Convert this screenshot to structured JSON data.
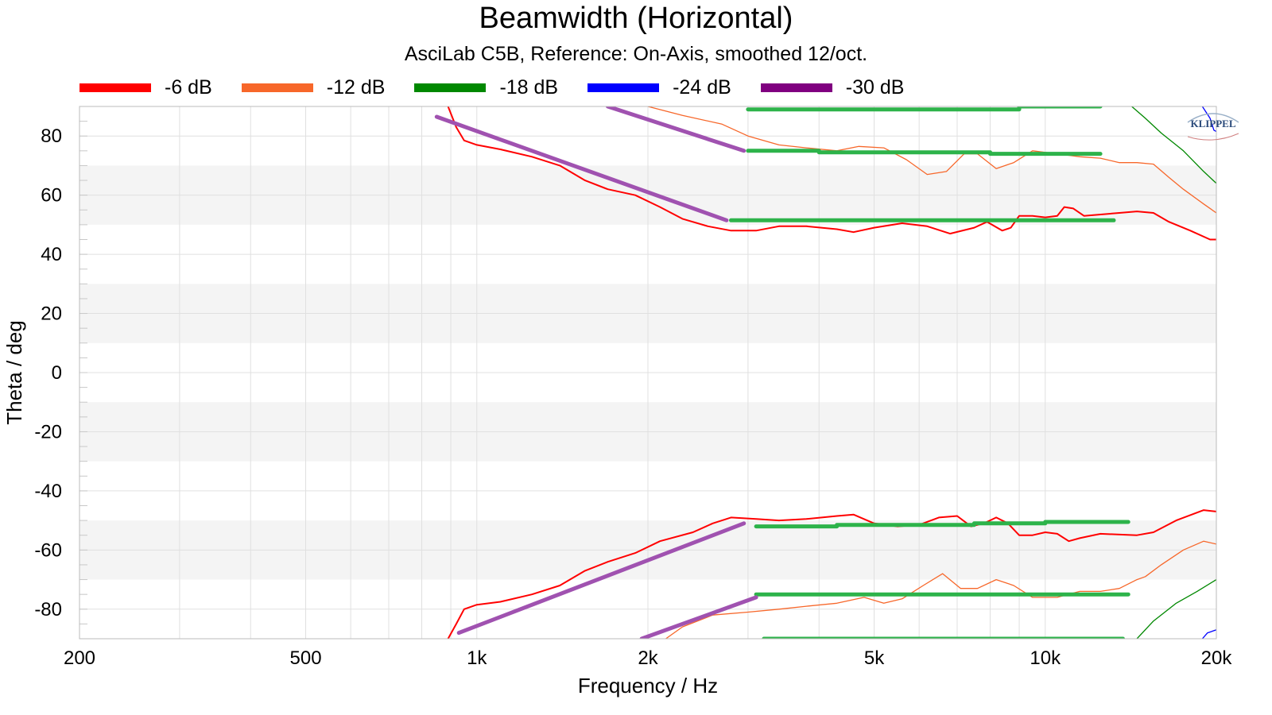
{
  "chart_data": {
    "type": "line",
    "title": "Beamwidth (Horizontal)",
    "subtitle": "AsciLab C5B, Reference: On-Axis, smoothed 12/oct.",
    "xlabel": "Frequency / Hz",
    "ylabel": "Theta / deg",
    "xscale": "log",
    "xlim": [
      200,
      20000
    ],
    "ylim": [
      -90,
      90
    ],
    "xticks": [
      200,
      500,
      1000,
      2000,
      5000,
      10000,
      20000
    ],
    "xtick_labels": [
      "200",
      "500",
      "1k",
      "2k",
      "5k",
      "10k",
      "20k"
    ],
    "yticks": [
      80,
      60,
      40,
      20,
      0,
      -20,
      -40,
      -60,
      -80
    ],
    "ytick_labels": [
      "80",
      "60",
      "40",
      "20",
      "0",
      "-20",
      "-40",
      "-60",
      "-80"
    ],
    "grid": true,
    "legend_position": "top-left",
    "logo_text": "KLIPPEL",
    "series": [
      {
        "name": "-6 dB",
        "color": "#ff0000",
        "branches": [
          [
            [
              890,
              90
            ],
            [
              920,
              83
            ],
            [
              950,
              78.5
            ],
            [
              1000,
              77
            ],
            [
              1100,
              75.5
            ],
            [
              1250,
              73
            ],
            [
              1400,
              70
            ],
            [
              1550,
              65
            ],
            [
              1700,
              62
            ],
            [
              1900,
              60
            ],
            [
              2100,
              56
            ],
            [
              2300,
              52
            ],
            [
              2550,
              49.5
            ],
            [
              2800,
              48
            ],
            [
              3100,
              48
            ],
            [
              3400,
              49.5
            ],
            [
              3800,
              49.5
            ],
            [
              4300,
              48.5
            ],
            [
              4600,
              47.5
            ],
            [
              5000,
              49
            ],
            [
              5600,
              50.5
            ],
            [
              6200,
              49.5
            ],
            [
              6800,
              47
            ],
            [
              7500,
              49
            ],
            [
              7900,
              51
            ],
            [
              8400,
              48
            ],
            [
              8700,
              49
            ],
            [
              9000,
              53
            ],
            [
              9500,
              53
            ],
            [
              10000,
              52.5
            ],
            [
              10500,
              53
            ],
            [
              10800,
              56
            ],
            [
              11200,
              55.5
            ],
            [
              11700,
              53
            ],
            [
              13500,
              54
            ],
            [
              14500,
              54.5
            ],
            [
              15500,
              54
            ],
            [
              16500,
              51
            ],
            [
              18000,
              48
            ],
            [
              19500,
              45
            ],
            [
              20000,
              45
            ]
          ],
          [
            [
              890,
              -90
            ],
            [
              920,
              -85
            ],
            [
              950,
              -80
            ],
            [
              1000,
              -78.5
            ],
            [
              1100,
              -77.5
            ],
            [
              1250,
              -75
            ],
            [
              1400,
              -72
            ],
            [
              1550,
              -67
            ],
            [
              1700,
              -64
            ],
            [
              1900,
              -61
            ],
            [
              2100,
              -57
            ],
            [
              2400,
              -54
            ],
            [
              2600,
              -51
            ],
            [
              2800,
              -49
            ],
            [
              3100,
              -49.5
            ],
            [
              3400,
              -50
            ],
            [
              3800,
              -49.5
            ],
            [
              4300,
              -48.5
            ],
            [
              4600,
              -48
            ],
            [
              5000,
              -51
            ],
            [
              5500,
              -52
            ],
            [
              6000,
              -51.5
            ],
            [
              6500,
              -49
            ],
            [
              7000,
              -48.5
            ],
            [
              7400,
              -52
            ],
            [
              7800,
              -51
            ],
            [
              8200,
              -49
            ],
            [
              8600,
              -51
            ],
            [
              9000,
              -55
            ],
            [
              9500,
              -55
            ],
            [
              10000,
              -54
            ],
            [
              10500,
              -54.5
            ],
            [
              11000,
              -57
            ],
            [
              11500,
              -56
            ],
            [
              12500,
              -54.5
            ],
            [
              14500,
              -55
            ],
            [
              15500,
              -54
            ],
            [
              17000,
              -50
            ],
            [
              19000,
              -46.5
            ],
            [
              20000,
              -47
            ]
          ]
        ]
      },
      {
        "name": "-12 dB",
        "color": "#f7672a",
        "branches": [
          [
            [
              2000,
              90
            ],
            [
              2300,
              87
            ],
            [
              2700,
              84
            ],
            [
              3000,
              80
            ],
            [
              3400,
              77
            ],
            [
              3800,
              76
            ],
            [
              4300,
              75
            ],
            [
              4700,
              76.5
            ],
            [
              5200,
              76
            ],
            [
              5700,
              72
            ],
            [
              6200,
              67
            ],
            [
              6700,
              68
            ],
            [
              7200,
              74
            ],
            [
              7600,
              74
            ],
            [
              8200,
              69
            ],
            [
              8800,
              71
            ],
            [
              9500,
              75
            ],
            [
              10500,
              74
            ],
            [
              11500,
              73
            ],
            [
              12500,
              72.5
            ],
            [
              13500,
              71
            ],
            [
              14500,
              71
            ],
            [
              15500,
              70.5
            ],
            [
              16500,
              66
            ],
            [
              17500,
              62
            ],
            [
              19000,
              57
            ],
            [
              20000,
              54
            ]
          ],
          [
            [
              2150,
              -90
            ],
            [
              2300,
              -86
            ],
            [
              2600,
              -82
            ],
            [
              3000,
              -81
            ],
            [
              3400,
              -80
            ],
            [
              3800,
              -79
            ],
            [
              4300,
              -78
            ],
            [
              4800,
              -76
            ],
            [
              5200,
              -78
            ],
            [
              5600,
              -76.5
            ],
            [
              6100,
              -72
            ],
            [
              6600,
              -68
            ],
            [
              7100,
              -73
            ],
            [
              7600,
              -73
            ],
            [
              8200,
              -70
            ],
            [
              8800,
              -72
            ],
            [
              9500,
              -76
            ],
            [
              10500,
              -76
            ],
            [
              11500,
              -74
            ],
            [
              12500,
              -74
            ],
            [
              13500,
              -73
            ],
            [
              14500,
              -70
            ],
            [
              15000,
              -69
            ],
            [
              16000,
              -65
            ],
            [
              17500,
              -60
            ],
            [
              19000,
              -57
            ],
            [
              20000,
              -58
            ]
          ]
        ]
      },
      {
        "name": "-18 dB",
        "color": "#008800",
        "branches": [
          [
            [
              14200,
              90
            ],
            [
              15000,
              86
            ],
            [
              16000,
              81
            ],
            [
              17500,
              75
            ],
            [
              19000,
              68
            ],
            [
              20000,
              64
            ]
          ],
          [
            [
              14500,
              -90
            ],
            [
              15500,
              -84
            ],
            [
              17000,
              -78
            ],
            [
              18500,
              -74
            ],
            [
              20000,
              -70
            ]
          ]
        ]
      },
      {
        "name": "-24 dB",
        "color": "#0000ff",
        "branches": [
          [
            [
              18900,
              90
            ],
            [
              19500,
              86
            ],
            [
              19800,
              82
            ],
            [
              20000,
              81.5
            ]
          ],
          [
            [
              18900,
              -90
            ],
            [
              19300,
              -88
            ],
            [
              20000,
              -87
            ]
          ]
        ]
      },
      {
        "name": "-30 dB",
        "color": "#800080",
        "branches": []
      }
    ],
    "fit_lines": [
      {
        "color": "#2db34a",
        "points": [
          [
            3000,
            89
          ],
          [
            9000,
            89
          ],
          [
            9000,
            90
          ],
          [
            12500,
            90
          ]
        ]
      },
      {
        "color": "#2db34a",
        "points": [
          [
            3000,
            75
          ],
          [
            4000,
            75
          ],
          [
            4000,
            74.5
          ],
          [
            8000,
            74.5
          ],
          [
            8000,
            74
          ],
          [
            12500,
            74
          ]
        ]
      },
      {
        "color": "#2db34a",
        "points": [
          [
            2800,
            51.5
          ],
          [
            13200,
            51.5
          ]
        ]
      },
      {
        "color": "#2db34a",
        "points": [
          [
            3100,
            -52
          ],
          [
            4300,
            -52
          ],
          [
            4300,
            -51.5
          ],
          [
            7500,
            -51.5
          ],
          [
            7500,
            -51
          ],
          [
            10000,
            -51
          ],
          [
            10000,
            -50.5
          ],
          [
            14000,
            -50.5
          ]
        ]
      },
      {
        "color": "#2db34a",
        "points": [
          [
            3100,
            -75
          ],
          [
            14000,
            -75
          ]
        ]
      },
      {
        "color": "#2db34a",
        "points": [
          [
            3200,
            -90
          ],
          [
            13700,
            -90
          ]
        ]
      },
      {
        "color": "#a052b0",
        "points": [
          [
            850,
            86.5
          ],
          [
            2750,
            51.5
          ]
        ]
      },
      {
        "color": "#a052b0",
        "points": [
          [
            1700,
            90
          ],
          [
            2950,
            75
          ]
        ]
      },
      {
        "color": "#a052b0",
        "points": [
          [
            930,
            -88
          ],
          [
            2950,
            -51
          ]
        ]
      },
      {
        "color": "#a052b0",
        "points": [
          [
            1950,
            -90
          ],
          [
            3100,
            -76
          ]
        ]
      }
    ]
  }
}
